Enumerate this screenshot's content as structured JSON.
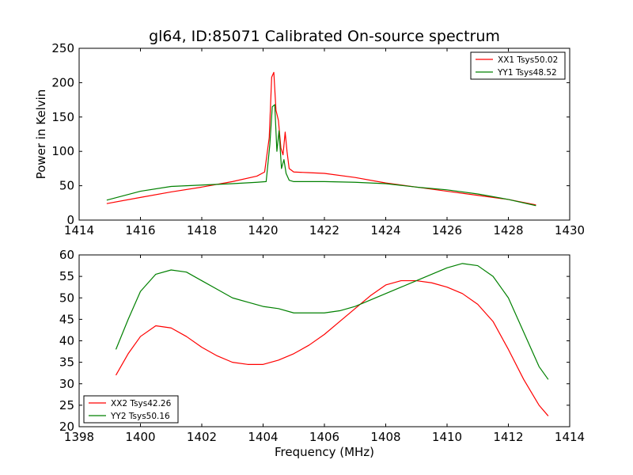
{
  "title": "gl64, ID:85071 Calibrated On-source spectrum",
  "chart_data": [
    {
      "type": "line",
      "ylabel": "Power in Kelvin",
      "xlabel": "",
      "xlim": [
        1414,
        1430
      ],
      "ylim": [
        0,
        250
      ],
      "xticks": [
        "1414",
        "1416",
        "1418",
        "1420",
        "1422",
        "1424",
        "1426",
        "1428",
        "1430"
      ],
      "yticks": [
        "0",
        "50",
        "100",
        "150",
        "200",
        "250"
      ],
      "legend_position": "upper-right",
      "series": [
        {
          "name": "XX1 Tsys50.02",
          "color": "#ff0000",
          "x": [
            1414.9,
            1416,
            1417,
            1418,
            1419,
            1419.8,
            1420.05,
            1420.2,
            1420.28,
            1420.35,
            1420.42,
            1420.5,
            1420.58,
            1420.65,
            1420.72,
            1420.78,
            1420.85,
            1421,
            1421.5,
            1422,
            1423,
            1424,
            1425,
            1426,
            1427,
            1428,
            1428.9
          ],
          "y": [
            24,
            33,
            41,
            48,
            56,
            64,
            70,
            120,
            208,
            215,
            160,
            145,
            105,
            95,
            128,
            100,
            75,
            70,
            69,
            68,
            62,
            54,
            48,
            42,
            36,
            30,
            22
          ]
        },
        {
          "name": "YY1 Tsys48.52",
          "color": "#008000",
          "x": [
            1414.9,
            1416,
            1417,
            1418,
            1419,
            1419.8,
            1420.1,
            1420.22,
            1420.3,
            1420.38,
            1420.45,
            1420.52,
            1420.6,
            1420.68,
            1420.75,
            1420.85,
            1421,
            1421.5,
            1422,
            1423,
            1424,
            1425,
            1426,
            1427,
            1428,
            1428.9
          ],
          "y": [
            29,
            42,
            49,
            51,
            53,
            55,
            56,
            110,
            165,
            168,
            100,
            130,
            75,
            88,
            68,
            58,
            56,
            56,
            56,
            55,
            53,
            48,
            44,
            38,
            30,
            21
          ]
        }
      ]
    },
    {
      "type": "line",
      "xlabel": "Frequency (MHz)",
      "ylabel": "",
      "xlim": [
        1398,
        1414
      ],
      "ylim": [
        20,
        60
      ],
      "xticks": [
        "1398",
        "1400",
        "1402",
        "1404",
        "1406",
        "1408",
        "1410",
        "1412",
        "1414"
      ],
      "yticks": [
        "20",
        "25",
        "30",
        "35",
        "40",
        "45",
        "50",
        "55",
        "60"
      ],
      "legend_position": "lower-left",
      "series": [
        {
          "name": "XX2 Tsys42.26",
          "color": "#ff0000",
          "x": [
            1399.2,
            1399.6,
            1400,
            1400.5,
            1401,
            1401.5,
            1402,
            1402.5,
            1403,
            1403.5,
            1404,
            1404.5,
            1405,
            1405.5,
            1406,
            1406.5,
            1407,
            1407.5,
            1408,
            1408.5,
            1409,
            1409.5,
            1410,
            1410.5,
            1411,
            1411.5,
            1412,
            1412.5,
            1413,
            1413.3
          ],
          "y": [
            32,
            37,
            41,
            43.5,
            43,
            41,
            38.5,
            36.5,
            35,
            34.5,
            34.5,
            35.5,
            37,
            39,
            41.5,
            44.5,
            47.5,
            50.5,
            53,
            54,
            54,
            53.5,
            52.5,
            51,
            48.5,
            44.5,
            38,
            31,
            25,
            22.5
          ]
        },
        {
          "name": "YY2 Tsys50.16",
          "color": "#008000",
          "x": [
            1399.2,
            1399.6,
            1400,
            1400.5,
            1401,
            1401.5,
            1402,
            1402.5,
            1403,
            1403.5,
            1404,
            1404.5,
            1405,
            1405.5,
            1406,
            1406.5,
            1407,
            1407.5,
            1408,
            1408.5,
            1409,
            1409.5,
            1410,
            1410.5,
            1411,
            1411.5,
            1412,
            1412.5,
            1413,
            1413.3
          ],
          "y": [
            38,
            45,
            51.5,
            55.5,
            56.5,
            56,
            54,
            52,
            50,
            49,
            48,
            47.5,
            46.5,
            46.5,
            46.5,
            47,
            48,
            49.5,
            51,
            52.5,
            54,
            55.5,
            57,
            58,
            57.5,
            55,
            50,
            42,
            34,
            31
          ]
        }
      ]
    }
  ]
}
